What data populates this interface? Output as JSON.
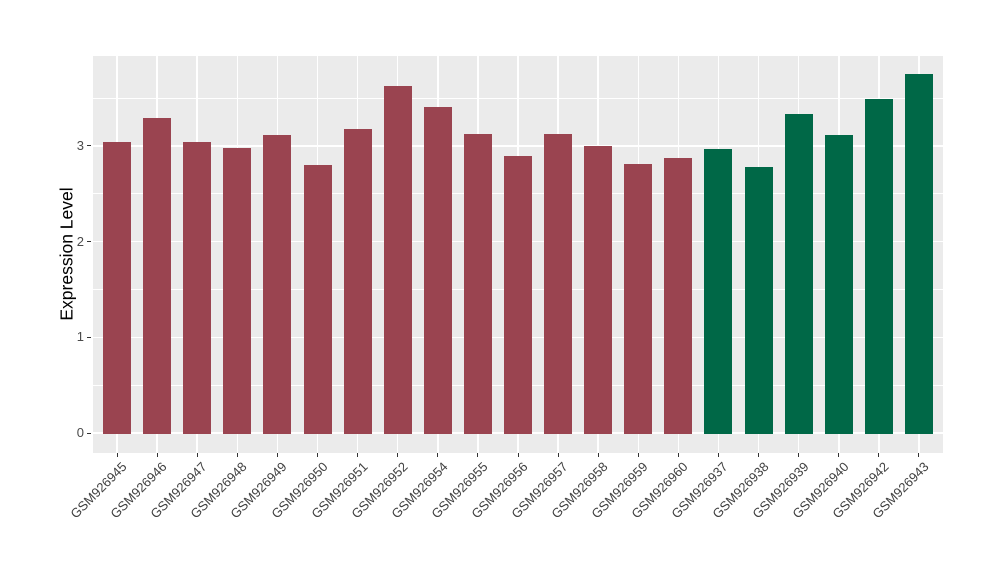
{
  "chart_data": {
    "type": "bar",
    "title": "",
    "xlabel": "",
    "ylabel": "Expression Level",
    "ylim": [
      0,
      3.94
    ],
    "yticks": [
      0,
      1,
      2,
      3
    ],
    "yticks_minor": [
      0.5,
      1.5,
      2.5,
      3.5
    ],
    "grid": "white major+minor horizontal, white major vertical, on gray panel",
    "legend_position": "none",
    "panel_background": "#EBEBEB",
    "gridline_color": "#FFFFFF",
    "group_colors": {
      "left_group": "#9A4450",
      "right_group": "#006847"
    },
    "categories": [
      "GSM926945",
      "GSM926946",
      "GSM926947",
      "GSM926948",
      "GSM926949",
      "GSM926950",
      "GSM926951",
      "GSM926952",
      "GSM926954",
      "GSM926955",
      "GSM926956",
      "GSM926957",
      "GSM926958",
      "GSM926959",
      "GSM926960",
      "GSM926937",
      "GSM926938",
      "GSM926939",
      "GSM926940",
      "GSM926942",
      "GSM926943"
    ],
    "values": [
      3.04,
      3.29,
      3.04,
      2.98,
      3.11,
      2.8,
      3.18,
      3.63,
      3.41,
      3.12,
      2.89,
      3.12,
      3.0,
      2.81,
      2.87,
      2.97,
      2.78,
      3.33,
      3.11,
      3.49,
      3.75
    ],
    "colors": [
      "#9A4450",
      "#9A4450",
      "#9A4450",
      "#9A4450",
      "#9A4450",
      "#9A4450",
      "#9A4450",
      "#9A4450",
      "#9A4450",
      "#9A4450",
      "#9A4450",
      "#9A4450",
      "#9A4450",
      "#9A4450",
      "#9A4450",
      "#006847",
      "#006847",
      "#006847",
      "#006847",
      "#006847",
      "#006847"
    ]
  }
}
